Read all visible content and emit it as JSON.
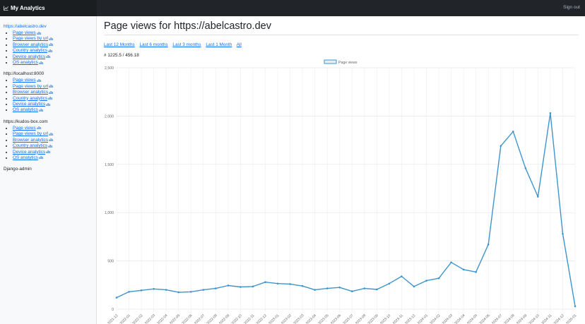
{
  "app": {
    "title": "My Analytics",
    "sign_out": "Sign out"
  },
  "sidebar": {
    "sites": [
      {
        "name": "https://abelcastro.dev",
        "links": [
          "Page views",
          "Page views by url",
          "Browser analytics",
          "Country analytics",
          "Device analytics",
          "OS analytics"
        ]
      },
      {
        "name": "http://localhost:8000",
        "links": [
          "Page views",
          "Page views by url",
          "Browser analytics",
          "Country analytics",
          "Device analytics",
          "OS analytics"
        ]
      },
      {
        "name": "https://kudos-box.com",
        "links": [
          "Page views",
          "Page views by url",
          "Browser analytics",
          "Country analytics",
          "Device analytics",
          "OS analytics"
        ]
      }
    ],
    "admin": "Django-admin"
  },
  "main": {
    "title": "Page views for https://abelcastro.dev",
    "ranges": [
      "Last 12 Months",
      "Last 6 months",
      "Last 3 months",
      "Last 1 Month",
      "All"
    ],
    "summary": "# 1225.5 / 456.18"
  },
  "colors": {
    "accent": "#0d6efd",
    "line": "#3e95cd",
    "topbar": "#212529"
  },
  "chart_data": {
    "type": "line",
    "series": [
      {
        "name": "Page views",
        "values": [
          120,
          180,
          195,
          210,
          200,
          175,
          180,
          200,
          215,
          245,
          230,
          235,
          280,
          265,
          260,
          240,
          200,
          215,
          225,
          185,
          215,
          205,
          265,
          340,
          235,
          295,
          320,
          485,
          410,
          385,
          670,
          1690,
          1840,
          1460,
          1165,
          2030,
          780,
          30
        ]
      }
    ],
    "x": [
      "2021-12",
      "2022-01",
      "2022-02",
      "2022-03",
      "2022-04",
      "2022-05",
      "2022-06",
      "2022-07",
      "2022-08",
      "2022-09",
      "2022-10",
      "2022-11",
      "2022-12",
      "2023-01",
      "2023-02",
      "2023-03",
      "2023-04",
      "2023-05",
      "2023-06",
      "2023-07",
      "2023-08",
      "2023-09",
      "2023-10",
      "2023-11",
      "2023-12",
      "2024-01",
      "2024-02",
      "2024-03",
      "2024-04",
      "2024-05",
      "2024-06",
      "2024-07",
      "2024-08",
      "2024-09",
      "2024-10",
      "2024-11",
      "2024-12",
      "2025-01"
    ],
    "y_ticks": [
      "0",
      "500",
      "1,000",
      "1,500",
      "2,000",
      "2,500"
    ],
    "ylim": [
      0,
      2500
    ],
    "legend": "top-center",
    "grid": true
  }
}
